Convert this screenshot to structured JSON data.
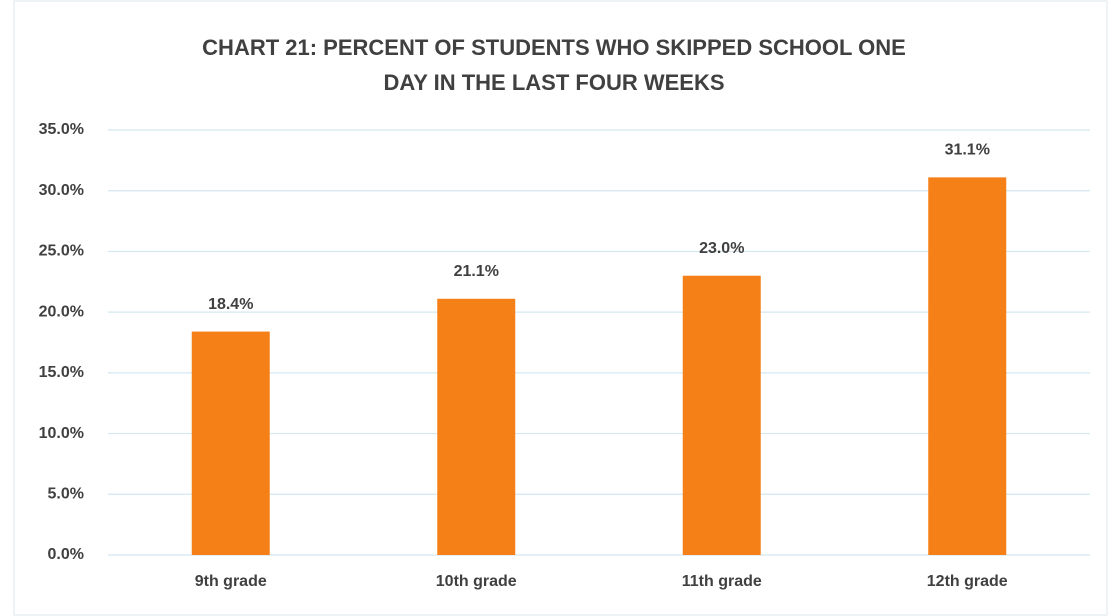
{
  "chart_data": {
    "type": "bar",
    "title": "CHART 21:  PERCENT OF STUDENTS WHO SKIPPED SCHOOL ONE DAY IN THE LAST FOUR WEEKS",
    "categories": [
      "9th grade",
      "10th grade",
      "11th grade",
      "12th grade"
    ],
    "values": [
      18.4,
      21.1,
      23.0,
      31.1
    ],
    "value_labels": [
      "18.4%",
      "21.1%",
      "23.0%",
      "31.1%"
    ],
    "color": "#f58017",
    "ylim": [
      0,
      35
    ],
    "yticks": [
      {
        "value": 0,
        "label": "0.0%"
      },
      {
        "value": 5,
        "label": "5.0%"
      },
      {
        "value": 10,
        "label": "10.0%"
      },
      {
        "value": 15,
        "label": "15.0%"
      },
      {
        "value": 20,
        "label": "20.0%"
      },
      {
        "value": 25,
        "label": "25.0%"
      },
      {
        "value": 30,
        "label": "30.0%"
      },
      {
        "value": 35,
        "label": "35.0%"
      }
    ],
    "grid": true
  }
}
